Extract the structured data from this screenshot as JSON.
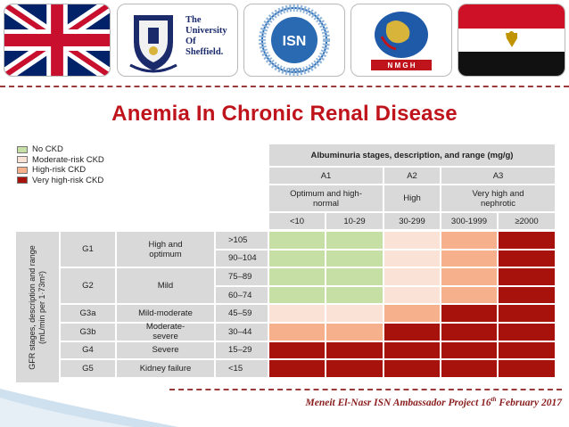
{
  "header": {
    "logos": [
      {
        "name": "uk-flag"
      },
      {
        "name": "university-of-sheffield-logo",
        "text": [
          "The",
          "University",
          "Of",
          "Sheffield."
        ]
      },
      {
        "name": "isn-logo",
        "ring_text": "INTERNATIONAL SOCIETY OF NEPHROLOGY",
        "center": "ISN",
        "year": "1960"
      },
      {
        "name": "nmgh-logo",
        "text": "N M G H"
      },
      {
        "name": "egypt-flag"
      }
    ]
  },
  "title": "Anemia In Chronic Renal Disease",
  "legend": [
    {
      "label": "No CKD",
      "color": "#c5dfa5"
    },
    {
      "label": "Moderate-risk CKD",
      "color": "#fbe2d6"
    },
    {
      "label": "High-risk CKD",
      "color": "#f7b08c"
    },
    {
      "label": "Very high-risk CKD",
      "color": "#a8120c"
    }
  ],
  "table": {
    "albuminuria_header": "Albuminuria stages, description, and range (mg/g)",
    "stages": [
      "A1",
      "A2",
      "A3"
    ],
    "descriptions": [
      "Optimum and high-normal",
      "High",
      "Very high and nephrotic"
    ],
    "ranges": [
      "<10",
      "10-29",
      "30-299",
      "300-1999",
      "≥2000"
    ],
    "gfr_axis_label": [
      "GFR stages, description and range",
      "(mL/min per 1·73m²)"
    ],
    "rows": [
      {
        "stage": "G1",
        "desc": "High and optimum",
        "ranges": [
          ">105",
          "90–104"
        ],
        "risk": [
          [
            0,
            0,
            1,
            2,
            3
          ],
          [
            0,
            0,
            1,
            2,
            3
          ]
        ]
      },
      {
        "stage": "G2",
        "desc": "Mild",
        "ranges": [
          "75–89",
          "60–74"
        ],
        "risk": [
          [
            0,
            0,
            1,
            2,
            3
          ],
          [
            0,
            0,
            1,
            2,
            3
          ]
        ]
      },
      {
        "stage": "G3a",
        "desc": "Mild-moderate",
        "ranges": [
          "45–59"
        ],
        "risk": [
          [
            1,
            1,
            2,
            3,
            3
          ]
        ]
      },
      {
        "stage": "G3b",
        "desc": "Moderate-severe",
        "ranges": [
          "30–44"
        ],
        "risk": [
          [
            2,
            2,
            3,
            3,
            3
          ]
        ]
      },
      {
        "stage": "G4",
        "desc": "Severe",
        "ranges": [
          "15–29"
        ],
        "risk": [
          [
            3,
            3,
            3,
            3,
            3
          ]
        ]
      },
      {
        "stage": "G5",
        "desc": "Kidney failure",
        "ranges": [
          "<15"
        ],
        "risk": [
          [
            3,
            3,
            3,
            3,
            3
          ]
        ]
      }
    ]
  },
  "footer": {
    "prefix": "Meneit El-Nasr ISN Ambassador Project 16",
    "sup": "th",
    "suffix": " February 2017"
  },
  "colors": {
    "title": "#c0141c",
    "dash": "#9a3a3a",
    "header_grey": "#d9d9d9"
  }
}
